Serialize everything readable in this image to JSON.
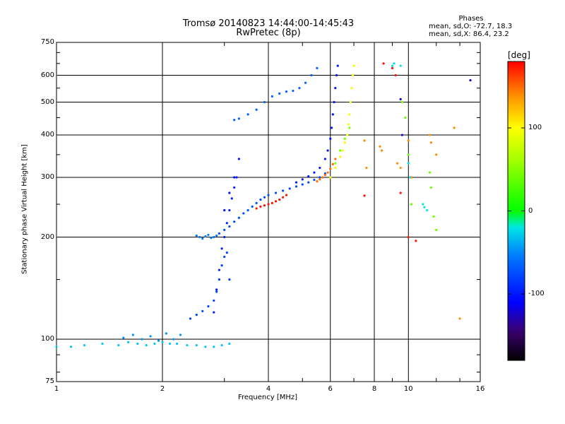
{
  "chart_data": {
    "type": "scatter",
    "title": "Tromsø 20140823 14:44:00-14:45:43",
    "subtitle": "RwPretec (8p)",
    "xlabel": "Frequency [MHz]",
    "ylabel": "Stationary phase Virtual Height [km]",
    "x_scale": "log",
    "y_scale": "log",
    "xlim": [
      1,
      16
    ],
    "ylim": [
      75,
      750
    ],
    "x_ticks": [
      "1",
      "2",
      "4",
      "6",
      "8",
      "10",
      "16"
    ],
    "x_tick_values": [
      1,
      2,
      4,
      6,
      8,
      10,
      16
    ],
    "y_ticks": [
      "75",
      "100",
      "200",
      "300",
      "400",
      "500",
      "600",
      "750"
    ],
    "y_tick_values": [
      75,
      100,
      200,
      300,
      400,
      500,
      600,
      750
    ],
    "grid": true,
    "phases_header": "Phases",
    "phase_stats": [
      "mean, sd,O: -72.7, 18.3",
      "mean, sd,X:  86.4, 23.2"
    ],
    "colorbar": {
      "label": "[deg]",
      "range": [
        -180,
        180
      ],
      "ticks": [
        "100",
        "0",
        "-100"
      ],
      "tick_values": [
        100,
        0,
        -100
      ],
      "colors": [
        "#ff0000",
        "#ff8800",
        "#ffff00",
        "#00ff00",
        "#00ffff",
        "#0000ff",
        "#400080",
        "#000000"
      ]
    },
    "series": [
      {
        "x": [
          1.0,
          1.1,
          1.2,
          1.35,
          1.5,
          1.6,
          1.7,
          1.8,
          1.9,
          2.0,
          2.1,
          2.2,
          2.35,
          2.5,
          2.65,
          2.8,
          2.95,
          3.1
        ],
        "y": [
          95,
          95,
          96,
          97,
          96,
          98,
          97,
          96,
          97,
          98,
          97,
          97,
          96,
          96,
          95,
          95,
          96,
          97
        ],
        "phase": -30
      },
      {
        "x": [
          1.55,
          1.65,
          1.75,
          1.85,
          1.95,
          2.05,
          2.15,
          2.25
        ],
        "y": [
          101,
          103,
          100,
          102,
          99,
          104,
          100,
          103
        ],
        "phase": -45
      },
      {
        "x": [
          2.4,
          2.5,
          2.6,
          2.7,
          2.8,
          2.85,
          2.9,
          2.95,
          3.0,
          3.05,
          3.1
        ],
        "y": [
          115,
          118,
          121,
          125,
          130,
          138,
          150,
          165,
          175,
          180,
          150
        ],
        "phase": -80
      },
      {
        "x": [
          2.8,
          2.85,
          2.9,
          2.95,
          3.0,
          3.05,
          3.1,
          3.15,
          3.2,
          3.25
        ],
        "y": [
          120,
          140,
          160,
          185,
          200,
          220,
          240,
          260,
          280,
          300
        ],
        "phase": -95
      },
      {
        "x": [
          2.5,
          2.55,
          2.6,
          2.65,
          2.7,
          2.75,
          2.8,
          2.85
        ],
        "y": [
          202,
          200,
          198,
          201,
          203,
          199,
          200,
          202
        ],
        "phase": -55
      },
      {
        "x": [
          2.9,
          3.0,
          3.1,
          3.2,
          3.3,
          3.4,
          3.5,
          3.6,
          3.7,
          3.8,
          3.9,
          4.0,
          4.2,
          4.4,
          4.6,
          4.8,
          5.0,
          5.2,
          5.4,
          5.6,
          5.8
        ],
        "y": [
          205,
          210,
          215,
          222,
          228,
          235,
          240,
          246,
          252,
          258,
          262,
          266,
          270,
          274,
          278,
          282,
          286,
          290,
          295,
          300,
          308
        ],
        "phase": -75
      },
      {
        "x": [
          3.0,
          3.1,
          3.2,
          3.3
        ],
        "y": [
          240,
          270,
          300,
          340
        ],
        "phase": -105
      },
      {
        "x": [
          3.7,
          3.8,
          3.9,
          4.0,
          4.1,
          4.2,
          4.3,
          4.4,
          4.5
        ],
        "y": [
          243,
          246,
          248,
          250,
          252,
          255,
          258,
          262,
          266
        ],
        "phase": 175
      },
      {
        "x": [
          3.2,
          3.3,
          3.5,
          3.7,
          3.9,
          4.1,
          4.3,
          4.5,
          4.7,
          4.9,
          5.1,
          5.3,
          5.5
        ],
        "y": [
          443,
          447,
          460,
          475,
          500,
          520,
          530,
          537,
          540,
          550,
          570,
          600,
          630
        ],
        "phase": -65
      },
      {
        "x": [
          4.8,
          5.0,
          5.2,
          5.4,
          5.6,
          5.8,
          5.9,
          6.0,
          6.05,
          6.1,
          6.15,
          6.2,
          6.25,
          6.3
        ],
        "y": [
          290,
          296,
          302,
          310,
          320,
          340,
          360,
          390,
          420,
          460,
          500,
          550,
          600,
          640
        ],
        "phase": -100
      },
      {
        "x": [
          5.5,
          5.6,
          5.7,
          5.8,
          5.9,
          6.0,
          6.1,
          6.2
        ],
        "y": [
          292,
          296,
          300,
          305,
          310,
          318,
          328,
          340
        ],
        "phase": 150
      },
      {
        "x": [
          6.0,
          6.2,
          6.4,
          6.5,
          6.6,
          6.7,
          6.75,
          6.8,
          6.85,
          6.9,
          6.95,
          7.0
        ],
        "y": [
          300,
          320,
          345,
          360,
          380,
          400,
          430,
          460,
          500,
          550,
          600,
          640
        ],
        "phase": 95
      },
      {
        "x": [
          6.2,
          6.4,
          6.6,
          6.8
        ],
        "y": [
          330,
          360,
          390,
          420
        ],
        "phase": 45
      },
      {
        "x": [
          7.5,
          7.6,
          8.3,
          8.4,
          9.3,
          9.5,
          10.0,
          10.2,
          11.5,
          11.6,
          12.0,
          13.5,
          14.0
        ],
        "y": [
          385,
          320,
          370,
          360,
          330,
          320,
          385,
          300,
          400,
          380,
          350,
          420,
          115
        ],
        "phase": 140
      },
      {
        "x": [
          7.5,
          8.5,
          9.0,
          9.2,
          9.5,
          10.0,
          10.5
        ],
        "y": [
          265,
          650,
          630,
          600,
          270,
          200,
          195
        ],
        "phase": 175
      },
      {
        "x": [
          9.6,
          9.8,
          10.0,
          10.2,
          11.5,
          11.6,
          11.8,
          12.0
        ],
        "y": [
          500,
          450,
          350,
          250,
          310,
          280,
          230,
          210
        ],
        "phase": 40
      },
      {
        "x": [
          9.0,
          9.1,
          9.5,
          10.0,
          10.1,
          11.0,
          11.1,
          11.3
        ],
        "y": [
          640,
          650,
          640,
          330,
          300,
          250,
          245,
          240
        ],
        "phase": -20
      },
      {
        "x": [
          9.5,
          9.6,
          15.0
        ],
        "y": [
          510,
          400,
          580
        ],
        "phase": -125
      }
    ]
  }
}
